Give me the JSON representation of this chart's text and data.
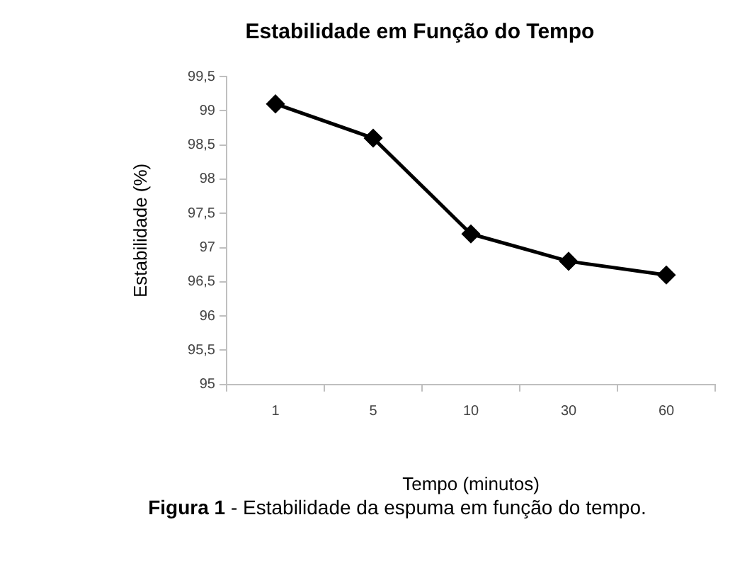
{
  "chart_data": {
    "type": "line",
    "title": "Estabilidade em Função do Tempo",
    "xlabel": "Tempo (minutos)",
    "ylabel": "Estabilidade (%)",
    "categories": [
      "1",
      "5",
      "10",
      "30",
      "60"
    ],
    "series": [
      {
        "color": "#000000",
        "values": [
          99.1,
          98.6,
          97.2,
          96.8,
          96.6
        ]
      }
    ],
    "ylim": [
      95,
      99.5
    ],
    "yticks": [
      95,
      {
        "value": 95.5,
        "label": "95,5"
      },
      96,
      {
        "value": 96.5,
        "label": "96,5"
      },
      97,
      {
        "value": 97.5,
        "label": "97,5"
      },
      98,
      {
        "value": 98.5,
        "label": "98,5"
      },
      99,
      {
        "value": 99.5,
        "label": "99,5"
      }
    ],
    "grid": false,
    "legend": false,
    "marker": "diamond",
    "line_style": "solid",
    "annotations": [
      "Figura 1 - Estabilidade da espuma em função do tempo."
    ]
  }
}
